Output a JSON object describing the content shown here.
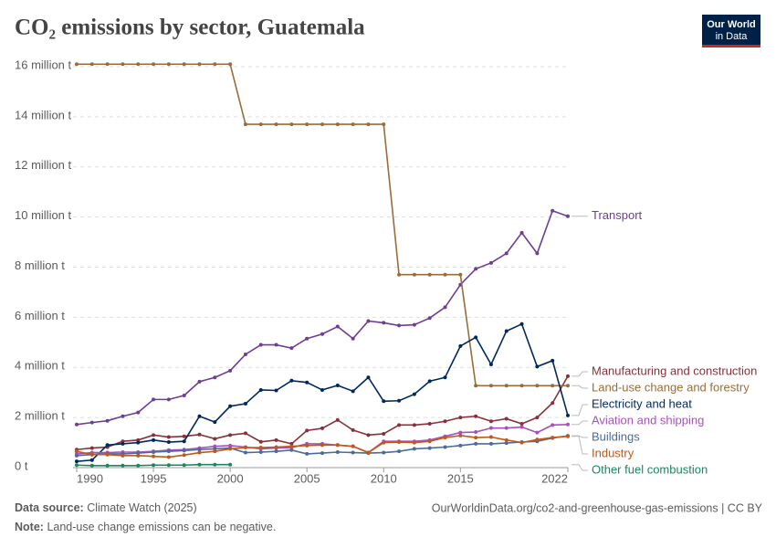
{
  "chart_data": {
    "type": "line",
    "title": "CO₂ emissions by sector, Guatemala",
    "logo": [
      "Our World",
      "in Data"
    ],
    "source_label": "Data source:",
    "source": "Climate Watch (2025)",
    "url": "OurWorldinData.org/co2-and-greenhouse-gas-emissions | CC BY",
    "note_label": "Note:",
    "note": "Land-use change emissions can be negative.",
    "x": [
      1990,
      1991,
      1992,
      1993,
      1994,
      1995,
      1996,
      1997,
      1998,
      1999,
      2000,
      2001,
      2002,
      2003,
      2004,
      2005,
      2006,
      2007,
      2008,
      2009,
      2010,
      2011,
      2012,
      2013,
      2014,
      2015,
      2016,
      2017,
      2018,
      2019,
      2020,
      2021,
      2022
    ],
    "xlim": [
      1990,
      2022
    ],
    "xticks": [
      1990,
      1995,
      2000,
      2005,
      2010,
      2015,
      2022
    ],
    "ylim": [
      0,
      16
    ],
    "yticks": [
      {
        "value": 0,
        "label": "0 t"
      },
      {
        "value": 2,
        "label": "2 million t"
      },
      {
        "value": 4,
        "label": "4 million t"
      },
      {
        "value": 6,
        "label": "6 million t"
      },
      {
        "value": 8,
        "label": "8 million t"
      },
      {
        "value": 10,
        "label": "10 million t"
      },
      {
        "value": 12,
        "label": "12 million t"
      },
      {
        "value": 14,
        "label": "14 million t"
      },
      {
        "value": 16,
        "label": "16 million t"
      }
    ],
    "grid": true,
    "series": [
      {
        "name": "Transport",
        "color": "#6d3e91",
        "values": [
          1.72,
          1.8,
          1.87,
          2.05,
          2.2,
          2.72,
          2.72,
          2.88,
          3.43,
          3.6,
          3.87,
          4.52,
          4.9,
          4.9,
          4.77,
          5.15,
          5.33,
          5.63,
          5.15,
          5.85,
          5.78,
          5.67,
          5.7,
          5.97,
          6.4,
          7.3,
          7.93,
          8.17,
          8.55,
          9.37,
          8.55,
          10.25,
          10.03
        ]
      },
      {
        "name": "Manufacturing and construction",
        "color": "#883039",
        "values": [
          0.72,
          0.78,
          0.82,
          1.05,
          1.1,
          1.3,
          1.22,
          1.25,
          1.32,
          1.15,
          1.3,
          1.37,
          1.03,
          1.1,
          0.95,
          1.48,
          1.57,
          1.9,
          1.5,
          1.3,
          1.35,
          1.7,
          1.7,
          1.75,
          1.85,
          2.0,
          2.05,
          1.85,
          1.95,
          1.75,
          2.0,
          2.58,
          3.65
        ]
      },
      {
        "name": "Land-use change and forestry",
        "color": "#996d39",
        "values": [
          16.1,
          16.1,
          16.1,
          16.1,
          16.1,
          16.1,
          16.1,
          16.1,
          16.1,
          16.1,
          16.1,
          13.7,
          13.7,
          13.7,
          13.7,
          13.7,
          13.7,
          13.7,
          13.7,
          13.7,
          13.7,
          7.7,
          7.7,
          7.7,
          7.7,
          7.7,
          3.27,
          3.27,
          3.27,
          3.27,
          3.27,
          3.27,
          3.27
        ]
      },
      {
        "name": "Electricity and heat",
        "color": "#00295b",
        "values": [
          0.25,
          0.3,
          0.9,
          0.95,
          1.0,
          1.1,
          1.02,
          1.05,
          2.05,
          1.82,
          2.45,
          2.55,
          3.1,
          3.08,
          3.47,
          3.4,
          3.1,
          3.28,
          3.05,
          3.6,
          2.65,
          2.67,
          2.93,
          3.45,
          3.6,
          4.85,
          5.2,
          4.12,
          5.45,
          5.73,
          4.03,
          4.27,
          2.08
        ]
      },
      {
        "name": "Aviation and shipping",
        "color": "#a652ba",
        "values": [
          0.55,
          0.6,
          0.6,
          0.62,
          0.62,
          0.65,
          0.7,
          0.72,
          0.78,
          0.85,
          0.88,
          0.82,
          0.75,
          0.78,
          0.8,
          0.95,
          0.95,
          0.9,
          0.85,
          0.6,
          1.05,
          1.05,
          1.05,
          1.1,
          1.25,
          1.4,
          1.42,
          1.58,
          1.58,
          1.62,
          1.4,
          1.7,
          1.72
        ]
      },
      {
        "name": "Buildings",
        "color": "#4c6a9c",
        "values": [
          0.48,
          0.52,
          0.55,
          0.55,
          0.58,
          0.62,
          0.65,
          0.68,
          0.72,
          0.75,
          0.78,
          0.6,
          0.62,
          0.65,
          0.7,
          0.55,
          0.58,
          0.62,
          0.6,
          0.58,
          0.6,
          0.65,
          0.75,
          0.78,
          0.82,
          0.88,
          0.95,
          0.95,
          0.98,
          1.02,
          1.05,
          1.18,
          1.27
        ]
      },
      {
        "name": "Industry",
        "color": "#c05917",
        "values": [
          0.65,
          0.52,
          0.52,
          0.48,
          0.48,
          0.45,
          0.42,
          0.5,
          0.6,
          0.65,
          0.75,
          0.8,
          0.8,
          0.82,
          0.85,
          0.88,
          0.9,
          0.9,
          0.85,
          0.6,
          1.0,
          1.02,
          1.0,
          1.05,
          1.2,
          1.28,
          1.2,
          1.22,
          1.1,
          1.0,
          1.12,
          1.2,
          1.25
        ]
      },
      {
        "name": "Other fuel combustion",
        "color": "#18895e",
        "values": [
          0.1,
          0.08,
          0.08,
          0.08,
          0.08,
          0.1,
          0.1,
          0.1,
          0.12,
          0.12,
          0.12,
          null,
          null,
          null,
          null,
          null,
          null,
          null,
          null,
          null,
          null,
          null,
          null,
          null,
          null,
          null,
          null,
          null,
          null,
          null,
          null,
          null,
          null
        ]
      }
    ]
  }
}
